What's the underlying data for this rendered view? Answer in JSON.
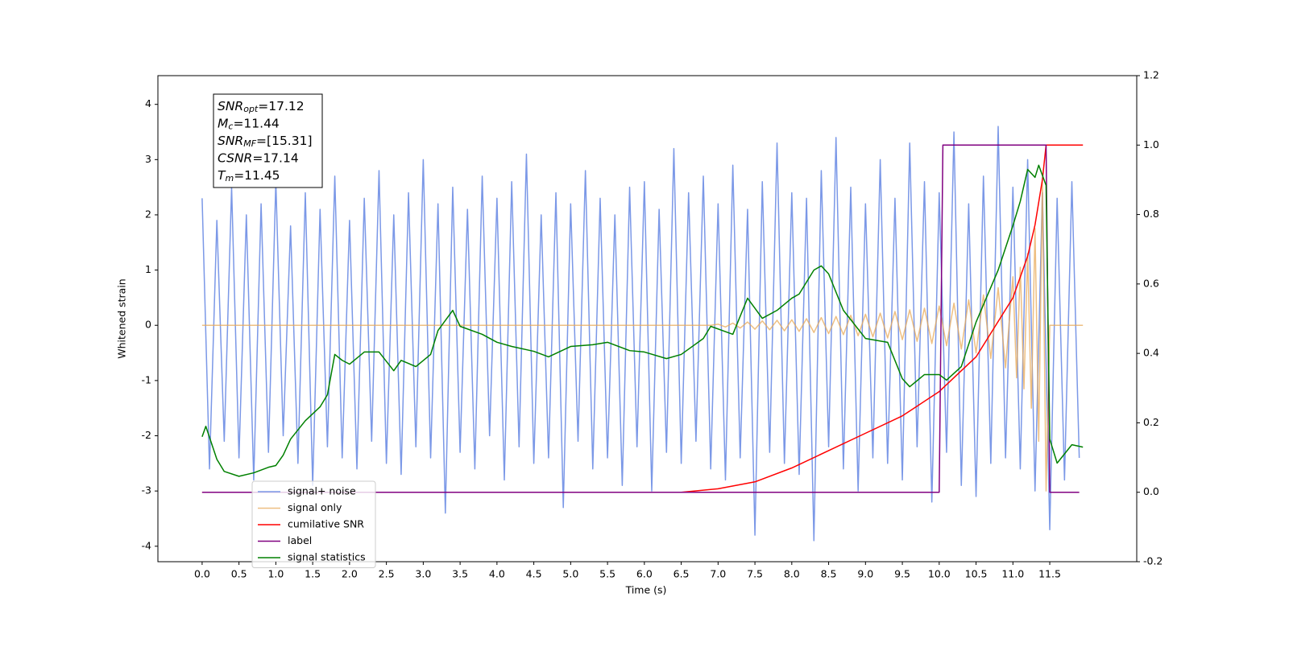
{
  "chart_data": {
    "type": "line",
    "xlabel": "Time (s)",
    "ylabel": "Whitened strain",
    "xlim": [
      -0.6,
      12.68
    ],
    "ylim": [
      -4.28,
      4.52
    ],
    "y2lim": [
      -0.2,
      1.2
    ],
    "xticks": [
      {
        "value": 0,
        "label": "0.0"
      },
      0.5,
      {
        "value": 1,
        "label": "1.0"
      },
      1.5,
      {
        "value": 2,
        "label": "2.0"
      },
      2.5,
      {
        "value": 3,
        "label": "3.0"
      },
      3.5,
      {
        "value": 4,
        "label": "4.0"
      },
      4.5,
      {
        "value": 5,
        "label": "5.0"
      },
      5.5,
      {
        "value": 6,
        "label": "6.0"
      },
      6.5,
      {
        "value": 7,
        "label": "7.0"
      },
      7.5,
      {
        "value": 8,
        "label": "8.0"
      },
      8.5,
      {
        "value": 9,
        "label": "9.0"
      },
      9.5,
      {
        "value": 10,
        "label": "10.0"
      },
      10.5,
      {
        "value": 11,
        "label": "11.0"
      },
      11.5
    ],
    "yticks": [
      -4,
      -3,
      -2,
      -1,
      0,
      1,
      2,
      3,
      4
    ],
    "y2ticks": [
      -0.2,
      {
        "value": 0,
        "label": "0.0"
      },
      0.2,
      0.4,
      0.6,
      0.8,
      {
        "value": 1,
        "label": "1.0"
      },
      1.2
    ],
    "legend": "lower left",
    "annotations": [
      {
        "main": "SNR",
        "sub": "opt",
        "rest": "=17.12"
      },
      {
        "main": "M",
        "sub": "c",
        "rest": "=11.44"
      },
      {
        "main": "SNR",
        "sub": "MF",
        "rest": "=[15.31]"
      },
      {
        "main": "CSNR",
        "sub": null,
        "rest": "=17.14"
      },
      {
        "main": "T",
        "sub": "m",
        "rest": "=11.45"
      }
    ],
    "series": [
      {
        "name": "signal+ noise",
        "color": "#7492e6",
        "x": [
          0.0,
          0.1,
          0.2,
          0.3,
          0.4,
          0.5,
          0.6,
          0.7,
          0.8,
          0.9,
          1.0,
          1.1,
          1.2,
          1.3,
          1.4,
          1.5,
          1.6,
          1.7,
          1.8,
          1.9,
          2.0,
          2.1,
          2.2,
          2.3,
          2.4,
          2.5,
          2.6,
          2.7,
          2.8,
          2.9,
          3.0,
          3.1,
          3.2,
          3.3,
          3.4,
          3.5,
          3.6,
          3.7,
          3.8,
          3.9,
          4.0,
          4.1,
          4.2,
          4.3,
          4.4,
          4.5,
          4.6,
          4.7,
          4.8,
          4.9,
          5.0,
          5.1,
          5.2,
          5.3,
          5.4,
          5.5,
          5.6,
          5.7,
          5.8,
          5.9,
          6.0,
          6.1,
          6.2,
          6.3,
          6.4,
          6.5,
          6.6,
          6.7,
          6.8,
          6.9,
          7.0,
          7.1,
          7.2,
          7.3,
          7.4,
          7.5,
          7.6,
          7.7,
          7.8,
          7.9,
          8.0,
          8.1,
          8.2,
          8.3,
          8.4,
          8.5,
          8.6,
          8.7,
          8.8,
          8.9,
          9.0,
          9.1,
          9.2,
          9.3,
          9.4,
          9.5,
          9.6,
          9.7,
          9.8,
          9.9,
          10.0,
          10.1,
          10.2,
          10.3,
          10.4,
          10.5,
          10.6,
          10.7,
          10.8,
          10.9,
          11.0,
          11.1,
          11.2,
          11.3,
          11.4,
          11.5,
          11.6,
          11.7,
          11.8,
          11.9
        ],
        "values": [
          2.3,
          -2.6,
          1.9,
          -2.1,
          2.5,
          -2.4,
          2.0,
          -2.8,
          2.2,
          -2.3,
          2.6,
          -2.0,
          1.8,
          -2.5,
          2.4,
          -2.9,
          2.1,
          -2.2,
          2.7,
          -2.4,
          1.9,
          -2.6,
          2.3,
          -2.1,
          2.8,
          -2.5,
          2.0,
          -2.7,
          2.4,
          -2.2,
          3.0,
          -2.4,
          2.2,
          -3.4,
          2.5,
          -2.3,
          2.1,
          -2.6,
          2.7,
          -2.0,
          2.3,
          -2.8,
          2.6,
          -2.2,
          3.1,
          -2.5,
          2.0,
          -2.4,
          2.4,
          -3.3,
          2.2,
          -2.1,
          2.8,
          -2.6,
          2.3,
          -2.4,
          2.0,
          -2.9,
          2.5,
          -2.2,
          2.6,
          -3.0,
          2.1,
          -2.3,
          3.2,
          -2.5,
          2.4,
          -2.1,
          2.7,
          -2.6,
          2.2,
          -2.8,
          2.9,
          -2.4,
          2.1,
          -3.8,
          2.6,
          -2.3,
          3.3,
          -2.5,
          2.4,
          -2.7,
          2.3,
          -3.9,
          2.8,
          -2.2,
          3.4,
          -2.6,
          2.5,
          -3.0,
          2.2,
          -2.4,
          3.0,
          -2.5,
          2.3,
          -2.8,
          3.3,
          -2.2,
          2.6,
          -3.2,
          2.4,
          -2.3,
          3.5,
          -2.9,
          2.2,
          -3.1,
          2.7,
          -2.5,
          3.6,
          -2.4,
          2.5,
          -2.6,
          3.0,
          -3.0,
          2.4,
          -3.7,
          2.3,
          -2.8,
          2.6,
          -2.4
        ]
      },
      {
        "name": "signal only",
        "color": "#e8a958",
        "x": [
          0,
          6.9,
          7.0,
          7.1,
          7.2,
          7.3,
          7.4,
          7.5,
          7.6,
          7.7,
          7.8,
          7.9,
          8.0,
          8.1,
          8.2,
          8.3,
          8.4,
          8.5,
          8.6,
          8.7,
          8.8,
          8.9,
          9.0,
          9.1,
          9.2,
          9.3,
          9.4,
          9.5,
          9.6,
          9.7,
          9.8,
          9.9,
          10.0,
          10.1,
          10.2,
          10.3,
          10.4,
          10.5,
          10.6,
          10.7,
          10.8,
          10.9,
          11.0,
          11.05,
          11.1,
          11.15,
          11.2,
          11.25,
          11.3,
          11.35,
          11.4,
          11.45,
          11.5,
          11.95
        ],
        "values": [
          0,
          0,
          0.02,
          -0.03,
          0.04,
          -0.05,
          0.06,
          -0.07,
          0.08,
          -0.08,
          0.09,
          -0.1,
          0.1,
          -0.11,
          0.12,
          -0.13,
          0.14,
          -0.15,
          0.16,
          -0.17,
          0.18,
          -0.19,
          0.2,
          -0.21,
          0.22,
          -0.23,
          0.25,
          -0.26,
          0.28,
          -0.29,
          0.31,
          -0.33,
          0.35,
          -0.37,
          0.4,
          -0.43,
          0.46,
          -0.5,
          0.55,
          -0.6,
          0.68,
          -0.77,
          0.88,
          -0.95,
          1.05,
          -1.15,
          1.3,
          -1.5,
          1.75,
          -2.1,
          2.6,
          -3.0,
          0,
          0
        ]
      },
      {
        "name": "cumilative SNR",
        "color": "#ff0000",
        "axis": "y2",
        "x": [
          0,
          6.5,
          7.0,
          7.5,
          8.0,
          8.5,
          9.0,
          9.5,
          10.0,
          10.5,
          11.0,
          11.2,
          11.3,
          11.4,
          11.45,
          11.95
        ],
        "values": [
          0,
          0,
          0.01,
          0.03,
          0.07,
          0.12,
          0.17,
          0.22,
          0.29,
          0.39,
          0.56,
          0.68,
          0.77,
          0.9,
          1.0,
          1.0
        ]
      },
      {
        "name": "label",
        "color": "#800080",
        "axis": "y2",
        "x": [
          0,
          10.0,
          10.05,
          11.45,
          11.5,
          11.9
        ],
        "values": [
          0,
          0,
          1,
          1,
          0,
          0
        ]
      },
      {
        "name": "signal statistics",
        "color": "#008000",
        "axis": "y2",
        "x": [
          0.0,
          0.05,
          0.2,
          0.3,
          0.5,
          0.7,
          0.9,
          1.0,
          1.1,
          1.2,
          1.4,
          1.6,
          1.7,
          1.8,
          1.9,
          2.0,
          2.2,
          2.4,
          2.6,
          2.7,
          2.9,
          3.1,
          3.2,
          3.4,
          3.5,
          3.8,
          4.0,
          4.2,
          4.5,
          4.7,
          5.0,
          5.3,
          5.5,
          5.8,
          6.0,
          6.3,
          6.5,
          6.8,
          6.9,
          7.2,
          7.4,
          7.6,
          7.8,
          8.0,
          8.1,
          8.3,
          8.4,
          8.5,
          8.7,
          9.0,
          9.3,
          9.5,
          9.6,
          9.8,
          10.0,
          10.1,
          10.3,
          10.5,
          10.8,
          11.0,
          11.1,
          11.2,
          11.3,
          11.35,
          11.45,
          11.5,
          11.6,
          11.8,
          11.95
        ],
        "values": [
          0.16,
          0.19,
          0.095,
          0.06,
          0.046,
          0.056,
          0.072,
          0.077,
          0.107,
          0.153,
          0.206,
          0.246,
          0.281,
          0.397,
          0.38,
          0.369,
          0.404,
          0.404,
          0.35,
          0.38,
          0.362,
          0.397,
          0.466,
          0.524,
          0.478,
          0.455,
          0.432,
          0.42,
          0.406,
          0.39,
          0.42,
          0.425,
          0.432,
          0.408,
          0.404,
          0.385,
          0.397,
          0.443,
          0.478,
          0.455,
          0.559,
          0.501,
          0.524,
          0.559,
          0.571,
          0.64,
          0.652,
          0.629,
          0.524,
          0.443,
          0.432,
          0.327,
          0.304,
          0.339,
          0.339,
          0.323,
          0.362,
          0.49,
          0.64,
          0.768,
          0.838,
          0.93,
          0.907,
          0.942,
          0.884,
          0.153,
          0.084,
          0.137,
          0.13
        ]
      }
    ]
  }
}
